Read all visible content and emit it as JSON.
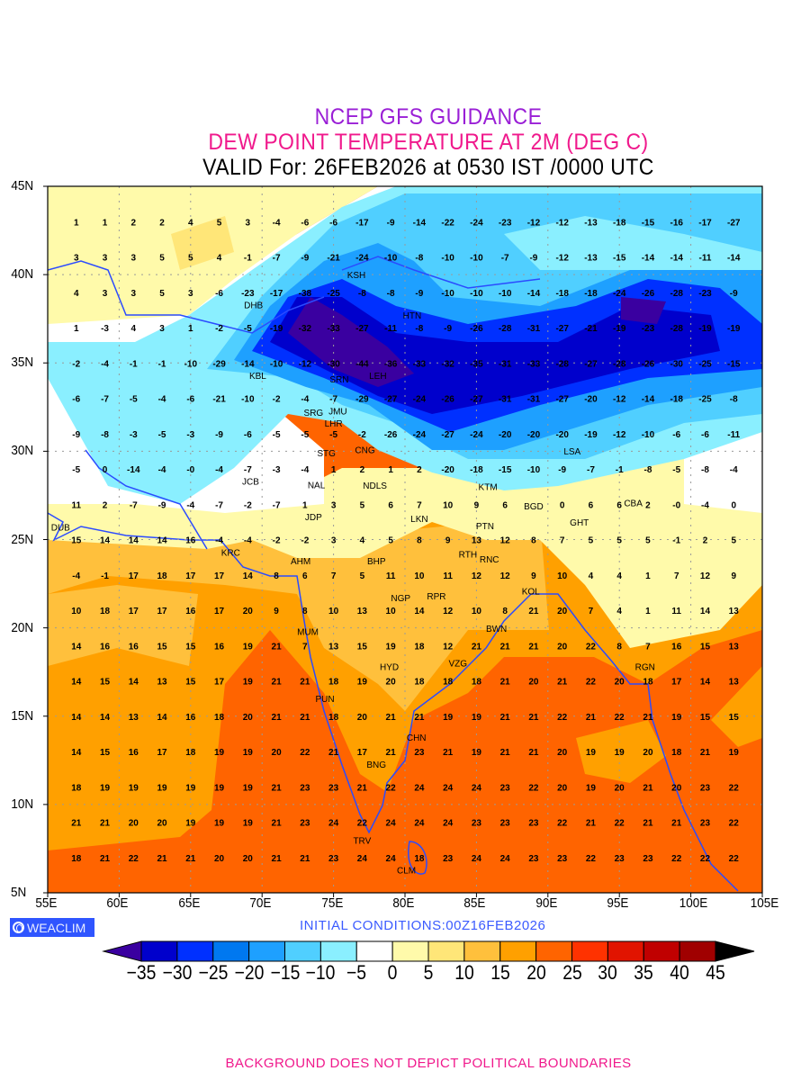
{
  "header": {
    "title_line1": "NCEP GFS GUIDANCE",
    "title_line2": "DEW POINT TEMPERATURE AT 2M (DEG C)",
    "title_line3": "VALID For: 26FEB2026 at 0530 IST /0000 UTC"
  },
  "axes": {
    "lat_labels": [
      "45N",
      "40N",
      "35N",
      "30N",
      "25N",
      "20N",
      "15N",
      "10N",
      "5N"
    ],
    "lat_values": [
      45,
      40,
      35,
      30,
      25,
      20,
      15,
      10,
      5
    ],
    "lon_labels": [
      "55E",
      "60E",
      "65E",
      "70E",
      "75E",
      "80E",
      "85E",
      "90E",
      "95E",
      "100E",
      "105E"
    ],
    "lon_values": [
      55,
      60,
      65,
      70,
      75,
      80,
      85,
      90,
      95,
      100,
      105
    ],
    "lon_range": [
      55,
      105
    ],
    "lat_range": [
      5,
      45
    ]
  },
  "grid_values": {
    "lon_start": 57,
    "lon_step": 2,
    "lat_start": 43,
    "lat_step": -2,
    "rows": [
      [
        "1",
        "1",
        "2",
        "2",
        "4",
        "5",
        "3",
        "-4",
        "-6",
        "-6",
        "-17",
        "-9",
        "-14",
        "-22",
        "-24",
        "-23",
        "-12",
        "-12",
        "-13",
        "-18",
        "-15",
        "-16",
        "-17",
        "-27"
      ],
      [
        "3",
        "3",
        "3",
        "5",
        "5",
        "4",
        "-1",
        "-7",
        "-9",
        "-21",
        "-24",
        "-10",
        "-8",
        "-10",
        "-10",
        "-7",
        "-9",
        "-12",
        "-13",
        "-15",
        "-14",
        "-14",
        "-11",
        "-14"
      ],
      [
        "4",
        "3",
        "3",
        "5",
        "3",
        "-6",
        "-23",
        "-17",
        "-38",
        "-25",
        "-8",
        "-8",
        "-9",
        "-10",
        "-10",
        "-10",
        "-14",
        "-18",
        "-18",
        "-24",
        "-26",
        "-28",
        "-23",
        "-9"
      ],
      [
        "1",
        "-3",
        "4",
        "3",
        "1",
        "-2",
        "-5",
        "-19",
        "-32",
        "-33",
        "-27",
        "-11",
        "-8",
        "-9",
        "-26",
        "-28",
        "-31",
        "-27",
        "-21",
        "-19",
        "-23",
        "-28",
        "-19",
        "-19"
      ],
      [
        "-2",
        "-4",
        "-1",
        "-1",
        "-10",
        "-29",
        "-14",
        "-10",
        "-12",
        "-30",
        "-44",
        "-36",
        "-33",
        "-32",
        "-35",
        "-31",
        "-33",
        "-28",
        "-27",
        "-28",
        "-26",
        "-30",
        "-25",
        "-15"
      ],
      [
        "-6",
        "-7",
        "-5",
        "-4",
        "-6",
        "-21",
        "-10",
        "-2",
        "-4",
        "-7",
        "-29",
        "-27",
        "-24",
        "-26",
        "-27",
        "-31",
        "-31",
        "-27",
        "-20",
        "-12",
        "-14",
        "-18",
        "-25",
        "-8"
      ],
      [
        "-9",
        "-8",
        "-3",
        "-5",
        "-3",
        "-9",
        "-6",
        "-5",
        "-5",
        "-5",
        "-2",
        "-26",
        "-24",
        "-27",
        "-24",
        "-20",
        "-20",
        "-20",
        "-19",
        "-12",
        "-10",
        "-6",
        "-6",
        "-11"
      ],
      [
        "-5",
        "0",
        "-14",
        "-4",
        "-0",
        "-4",
        "-7",
        "-3",
        "-4",
        "1",
        "2",
        "1",
        "2",
        "-20",
        "-18",
        "-15",
        "-10",
        "-9",
        "-7",
        "-1",
        "-8",
        "-5",
        "-8",
        "-4"
      ],
      [
        "11",
        "2",
        "-7",
        "-9",
        "-4",
        "-7",
        "-2",
        "-7",
        "1",
        "3",
        "5",
        "6",
        "7",
        "10",
        "9",
        "6",
        "",
        "0",
        "6",
        "6",
        "2",
        "-0",
        "-4",
        "0"
      ],
      [
        "15",
        "14",
        "14",
        "14",
        "16",
        "-4",
        "-4",
        "-2",
        "-2",
        "3",
        "4",
        "5",
        "8",
        "9",
        "13",
        "12",
        "8",
        "7",
        "5",
        "5",
        "5",
        "-1",
        "2",
        "5"
      ],
      [
        "-4",
        "-1",
        "17",
        "18",
        "17",
        "17",
        "14",
        "8",
        "6",
        "7",
        "5",
        "11",
        "10",
        "11",
        "12",
        "12",
        "9",
        "10",
        "4",
        "4",
        "1",
        "7",
        "12",
        "9"
      ],
      [
        "10",
        "18",
        "17",
        "17",
        "16",
        "17",
        "20",
        "9",
        "8",
        "10",
        "13",
        "10",
        "14",
        "12",
        "10",
        "8",
        "21",
        "20",
        "7",
        "4",
        "1",
        "11",
        "14",
        "13"
      ],
      [
        "14",
        "16",
        "16",
        "15",
        "15",
        "16",
        "19",
        "21",
        "7",
        "13",
        "15",
        "19",
        "18",
        "12",
        "21",
        "21",
        "21",
        "20",
        "22",
        "8",
        "7",
        "16",
        "15",
        "13"
      ],
      [
        "14",
        "15",
        "14",
        "13",
        "15",
        "17",
        "19",
        "21",
        "21",
        "18",
        "19",
        "20",
        "18",
        "18",
        "18",
        "21",
        "20",
        "21",
        "22",
        "20",
        "18",
        "17",
        "14",
        "13"
      ],
      [
        "14",
        "14",
        "13",
        "14",
        "16",
        "18",
        "20",
        "21",
        "21",
        "18",
        "20",
        "21",
        "21",
        "19",
        "19",
        "21",
        "21",
        "22",
        "21",
        "22",
        "21",
        "19",
        "15",
        "15"
      ],
      [
        "14",
        "15",
        "16",
        "17",
        "18",
        "19",
        "19",
        "20",
        "22",
        "21",
        "17",
        "21",
        "23",
        "21",
        "19",
        "21",
        "21",
        "20",
        "19",
        "19",
        "20",
        "18",
        "21",
        "19"
      ],
      [
        "18",
        "19",
        "19",
        "19",
        "19",
        "19",
        "19",
        "21",
        "23",
        "23",
        "21",
        "22",
        "24",
        "24",
        "24",
        "23",
        "22",
        "20",
        "19",
        "20",
        "21",
        "20",
        "23",
        "22"
      ],
      [
        "21",
        "21",
        "20",
        "20",
        "19",
        "19",
        "19",
        "21",
        "23",
        "24",
        "22",
        "24",
        "24",
        "24",
        "23",
        "23",
        "23",
        "22",
        "21",
        "22",
        "21",
        "21",
        "23",
        "22"
      ],
      [
        "18",
        "21",
        "22",
        "21",
        "21",
        "20",
        "20",
        "21",
        "21",
        "23",
        "24",
        "24",
        "18",
        "23",
        "24",
        "24",
        "23",
        "23",
        "22",
        "23",
        "23",
        "22",
        "22",
        "22"
      ]
    ]
  },
  "stations": [
    {
      "code": "KSH",
      "lon": 76.6,
      "lat": 39.6
    },
    {
      "code": "DHB",
      "lon": 69.4,
      "lat": 38.7
    },
    {
      "code": "HTN",
      "lon": 80.5,
      "lat": 37.3
    },
    {
      "code": "KBL",
      "lon": 69.7,
      "lat": 34.7
    },
    {
      "code": "SRN",
      "lon": 75.4,
      "lat": 34.1
    },
    {
      "code": "LEH",
      "lon": 78.1,
      "lat": 34.3
    },
    {
      "code": "JMU",
      "lon": 75.3,
      "lat": 32.9
    },
    {
      "code": "SRG",
      "lon": 73.6,
      "lat": 32.2
    },
    {
      "code": "LHR",
      "lon": 75.0,
      "lat": 31.6
    },
    {
      "code": "CNG",
      "lon": 77.2,
      "lat": 30.5
    },
    {
      "code": "STG",
      "lon": 74.5,
      "lat": 29.5
    },
    {
      "code": "NDLS",
      "lon": 77.9,
      "lat": 28.5
    },
    {
      "code": "LSA",
      "lon": 91.7,
      "lat": 29.6
    },
    {
      "code": "JCB",
      "lon": 69.2,
      "lat": 28.3
    },
    {
      "code": "NAL",
      "lon": 73.8,
      "lat": 28.1
    },
    {
      "code": "KTM",
      "lon": 85.8,
      "lat": 27.6
    },
    {
      "code": "BGD",
      "lon": 89.0,
      "lat": 26.9
    },
    {
      "code": "CBA",
      "lon": 96.6,
      "lat": 27.1
    },
    {
      "code": "JDP",
      "lon": 73.6,
      "lat": 26.3
    },
    {
      "code": "LKN",
      "lon": 81.0,
      "lat": 26.6
    },
    {
      "code": "GHT",
      "lon": 92.2,
      "lat": 26.4
    },
    {
      "code": "PTN",
      "lon": 85.6,
      "lat": 25.8
    },
    {
      "code": "DUB",
      "lon": 55.9,
      "lat": 25.3
    },
    {
      "code": "KRC",
      "lon": 67.8,
      "lat": 24.7
    },
    {
      "code": "RTH",
      "lon": 84.4,
      "lat": 24.6
    },
    {
      "code": "AHM",
      "lon": 72.7,
      "lat": 23.2
    },
    {
      "code": "BHP",
      "lon": 78.0,
      "lat": 23.4
    },
    {
      "code": "RNC",
      "lon": 85.9,
      "lat": 23.5
    },
    {
      "code": "KOL",
      "lon": 88.8,
      "lat": 22.5
    },
    {
      "code": "NGP",
      "lon": 79.7,
      "lat": 21.3
    },
    {
      "code": "RPR",
      "lon": 82.2,
      "lat": 21.4
    },
    {
      "code": "BWN",
      "lon": 86.4,
      "lat": 20.4
    },
    {
      "code": "MUM",
      "lon": 73.2,
      "lat": 19.2
    },
    {
      "code": "HYD",
      "lon": 78.9,
      "lat": 17.4
    },
    {
      "code": "VZG",
      "lon": 83.7,
      "lat": 17.6
    },
    {
      "code": "RGN",
      "lon": 96.8,
      "lat": 17.0
    },
    {
      "code": "PUN",
      "lon": 74.4,
      "lat": 15.6
    },
    {
      "code": "CHN",
      "lon": 80.8,
      "lat": 13.2
    },
    {
      "code": "BNG",
      "lon": 78.0,
      "lat": 12.7
    },
    {
      "code": "TRV",
      "lon": 77.0,
      "lat": 8.4
    },
    {
      "code": "CLM",
      "lon": 80.1,
      "lat": 6.7
    }
  ],
  "branding": {
    "weaclim": "WEACLIM",
    "initial_conditions": "INITIAL  CONDITIONS:00Z16FEB2026"
  },
  "colorbar": {
    "labels": [
      "-35",
      "-30",
      "-25",
      "-20",
      "-15",
      "-10",
      "-5",
      "0",
      "5",
      "10",
      "15",
      "20",
      "25",
      "30",
      "35",
      "40",
      "45"
    ],
    "colors": [
      "#0000cc",
      "#0030ff",
      "#0078f0",
      "#1ea0ff",
      "#50cfff",
      "#8aefff",
      "#ffffff",
      "#fffaaa",
      "#ffe678",
      "#ffc03c",
      "#ffa000",
      "#ff6400",
      "#ff3200",
      "#e11400",
      "#c00000",
      "#a00000"
    ],
    "under_color": "#3a00a0",
    "over_color": "#000000"
  },
  "footer": {
    "note": "BACKGROUND DOES NOT DEPICT POLITICAL BOUNDARIES"
  }
}
